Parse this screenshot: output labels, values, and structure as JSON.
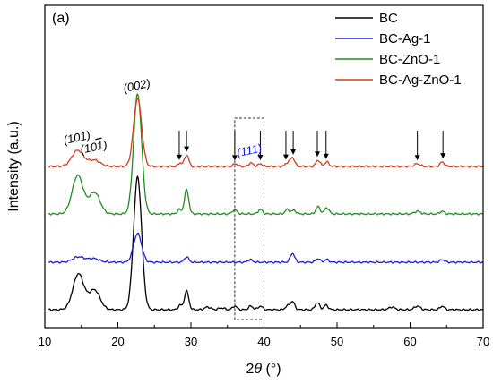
{
  "chart_data": {
    "type": "line",
    "panel_label": "(a)",
    "xlabel_prefix": "2",
    "xlabel_theta": "θ",
    "xlabel_suffix": " (°)",
    "ylabel": "Intensity (a.u.)",
    "xlim": [
      10,
      70
    ],
    "xticks": [
      10,
      20,
      30,
      40,
      50,
      60,
      70
    ],
    "y_ticks_shown": false,
    "grid": false,
    "legend_position": "top-right",
    "series": [
      {
        "name": "BC",
        "color": "#000000",
        "offset": 0,
        "baseline": 2,
        "peaks": [
          [
            14.6,
            40,
            0.75
          ],
          [
            16.8,
            22,
            0.75
          ],
          [
            22.7,
            148,
            0.55
          ],
          [
            28.5,
            5,
            0.25
          ],
          [
            29.4,
            21,
            0.3
          ],
          [
            32.3,
            3,
            0.4
          ],
          [
            34.2,
            2,
            0.4
          ],
          [
            36.0,
            4,
            0.3
          ],
          [
            38.2,
            4,
            0.3
          ],
          [
            39.5,
            4,
            0.3
          ],
          [
            43.2,
            4,
            0.3
          ],
          [
            43.9,
            9,
            0.3
          ],
          [
            47.3,
            8,
            0.3
          ],
          [
            48.5,
            5,
            0.3
          ],
          [
            57.5,
            3,
            0.4
          ],
          [
            61.0,
            4,
            0.4
          ],
          [
            64.4,
            4,
            0.3
          ]
        ]
      },
      {
        "name": "BC-Ag-1",
        "color": "#1a1ad6",
        "offset": 55,
        "baseline": 0,
        "peaks": [
          [
            14.6,
            6,
            0.8
          ],
          [
            16.7,
            4,
            0.8
          ],
          [
            22.7,
            32,
            0.55
          ],
          [
            29.4,
            6,
            0.3
          ],
          [
            38.1,
            3,
            0.3
          ],
          [
            43.9,
            10,
            0.3
          ],
          [
            47.4,
            4,
            0.3
          ],
          [
            48.6,
            3,
            0.3
          ],
          [
            64.4,
            3,
            0.3
          ]
        ]
      },
      {
        "name": "BC-ZnO-1",
        "color": "#1f8c1f",
        "offset": 108,
        "baseline": 1,
        "peaks": [
          [
            14.5,
            43,
            0.75
          ],
          [
            16.8,
            24,
            0.75
          ],
          [
            22.7,
            134,
            0.55
          ],
          [
            28.4,
            5,
            0.25
          ],
          [
            29.4,
            27,
            0.3
          ],
          [
            36.0,
            5,
            0.3
          ],
          [
            39.5,
            5,
            0.3
          ],
          [
            43.2,
            5,
            0.3
          ],
          [
            44.1,
            4,
            0.3
          ],
          [
            47.4,
            8,
            0.3
          ],
          [
            48.6,
            7,
            0.3
          ],
          [
            61.0,
            3,
            0.4
          ],
          [
            64.4,
            3,
            0.3
          ]
        ]
      },
      {
        "name": "BC-Ag-ZnO-1",
        "color": "#d43c1c",
        "offset": 161,
        "baseline": 1,
        "peaks": [
          [
            14.5,
            18,
            0.8
          ],
          [
            16.8,
            7,
            0.8
          ],
          [
            22.7,
            76,
            0.55
          ],
          [
            28.5,
            4,
            0.25
          ],
          [
            29.4,
            13,
            0.3
          ],
          [
            36.1,
            3,
            0.3
          ],
          [
            38.2,
            4,
            0.3
          ],
          [
            39.5,
            3,
            0.3
          ],
          [
            43.2,
            4,
            0.3
          ],
          [
            43.9,
            10,
            0.3
          ],
          [
            47.4,
            7,
            0.3
          ],
          [
            48.6,
            5,
            0.3
          ],
          [
            61.0,
            3,
            0.4
          ],
          [
            64.4,
            5,
            0.3
          ]
        ]
      }
    ],
    "annotations": [
      {
        "text": "(101)",
        "x": 14.5,
        "color": "#000000",
        "rotate": -12
      },
      {
        "text": "(10",
        "x": 16.8,
        "color": "#000000",
        "rotate": -12,
        "bar_char": "1",
        "suffix": ")"
      },
      {
        "text": "(002)",
        "x": 22.7,
        "color": "#000000",
        "rotate": -12
      },
      {
        "text": "(111)",
        "x": 38.1,
        "color": "#1a1ad6",
        "rotate": -12
      }
    ],
    "arrows_x": [
      28.4,
      29.4,
      36.0,
      39.5,
      43.0,
      44.0,
      47.3,
      48.5,
      61.0,
      64.5
    ],
    "dashed_box_x": [
      36.0,
      40.0
    ]
  }
}
